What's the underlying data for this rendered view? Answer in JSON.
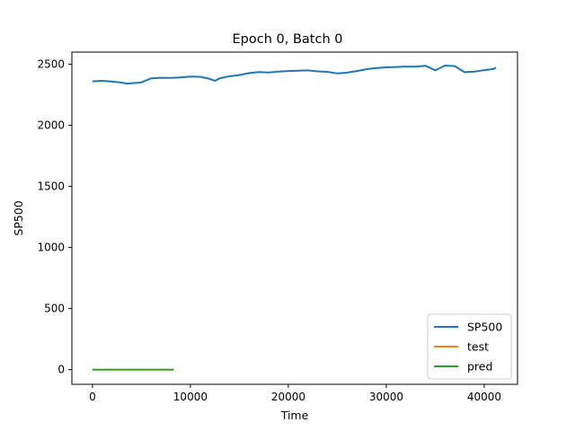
{
  "chart_data": {
    "type": "line",
    "title": "Epoch 0, Batch 0",
    "xlabel": "Time",
    "ylabel": "SP500",
    "xlim": [
      -2100,
      43400
    ],
    "ylim": [
      -120,
      2600
    ],
    "xticks": [
      0,
      10000,
      20000,
      30000,
      40000
    ],
    "xtick_labels": [
      "0",
      "10000",
      "20000",
      "30000",
      "40000"
    ],
    "yticks": [
      0,
      500,
      1000,
      1500,
      2000,
      2500
    ],
    "ytick_labels": [
      "0",
      "500",
      "1000",
      "1500",
      "2000",
      "2500"
    ],
    "grid": false,
    "legend_position": "lower right",
    "series": [
      {
        "name": "SP500",
        "color": "#1f77b4",
        "x": [
          0,
          1000,
          2000,
          3000,
          3500,
          4000,
          5000,
          6000,
          7000,
          8000,
          9000,
          10000,
          11000,
          12000,
          12500,
          13000,
          14000,
          15000,
          16000,
          17000,
          18000,
          19000,
          20000,
          21000,
          22000,
          23000,
          24000,
          25000,
          26000,
          27000,
          28000,
          29000,
          30000,
          31000,
          32000,
          33000,
          34000,
          34500,
          35000,
          36000,
          37000,
          38000,
          39000,
          40000,
          41000,
          41200
        ],
        "y": [
          2360,
          2365,
          2358,
          2350,
          2342,
          2345,
          2352,
          2385,
          2390,
          2388,
          2392,
          2400,
          2398,
          2380,
          2365,
          2385,
          2402,
          2412,
          2428,
          2437,
          2433,
          2440,
          2445,
          2448,
          2450,
          2442,
          2438,
          2425,
          2432,
          2445,
          2460,
          2470,
          2475,
          2478,
          2482,
          2480,
          2488,
          2470,
          2450,
          2490,
          2485,
          2435,
          2440,
          2452,
          2462,
          2475
        ]
      },
      {
        "name": "test",
        "color": "#ff7f0e",
        "x": [
          0,
          8300
        ],
        "y": [
          0,
          0
        ]
      },
      {
        "name": "pred",
        "color": "#2ca02c",
        "x": [
          0,
          8300
        ],
        "y": [
          0,
          0
        ]
      }
    ]
  }
}
